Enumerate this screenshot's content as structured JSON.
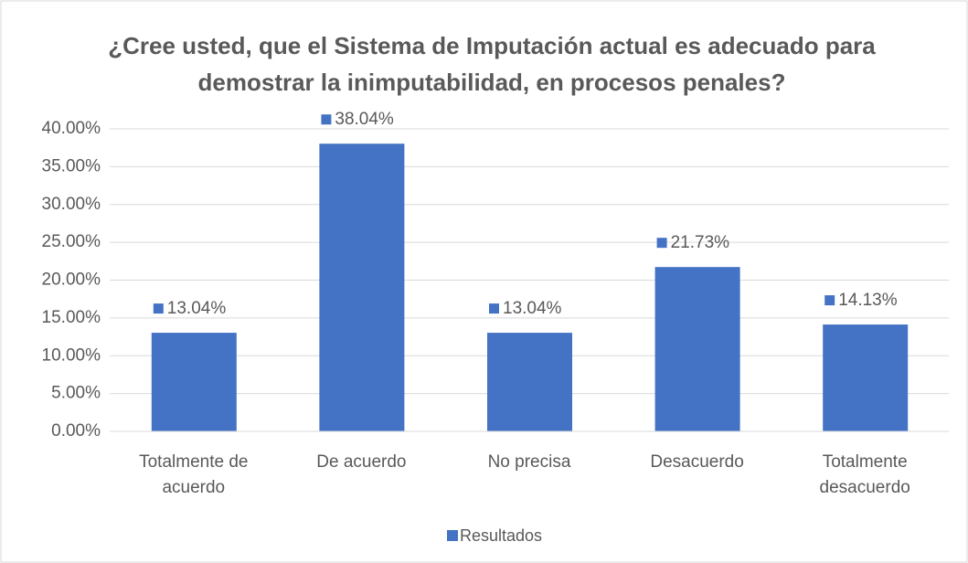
{
  "chart_data": {
    "type": "bar",
    "title": "¿Cree usted, que el Sistema de Imputación actual es adecuado para demostrar la inimputabilidad, en procesos penales?",
    "categories": [
      "Totalmente de acuerdo",
      "De acuerdo",
      "No precisa",
      "Desacuerdo",
      "Totalmente desacuerdo"
    ],
    "series": [
      {
        "name": "Resultados",
        "color": "#4472c4",
        "values": [
          13.04,
          38.04,
          13.04,
          21.73,
          14.13
        ],
        "value_labels": [
          "13.04%",
          "38.04%",
          "13.04%",
          "21.73%",
          "14.13%"
        ]
      }
    ],
    "ylim": [
      0,
      40
    ],
    "yticks": [
      {
        "value": 0,
        "label": "0.00%"
      },
      {
        "value": 5,
        "label": "5.00%"
      },
      {
        "value": 10,
        "label": "10.00%"
      },
      {
        "value": 15,
        "label": "15.00%"
      },
      {
        "value": 20,
        "label": "20.00%"
      },
      {
        "value": 25,
        "label": "25.00%"
      },
      {
        "value": 30,
        "label": "30.00%"
      },
      {
        "value": 35,
        "label": "35.00%"
      },
      {
        "value": 40,
        "label": "40.00%"
      }
    ],
    "grid": true,
    "legend": "bottom"
  }
}
